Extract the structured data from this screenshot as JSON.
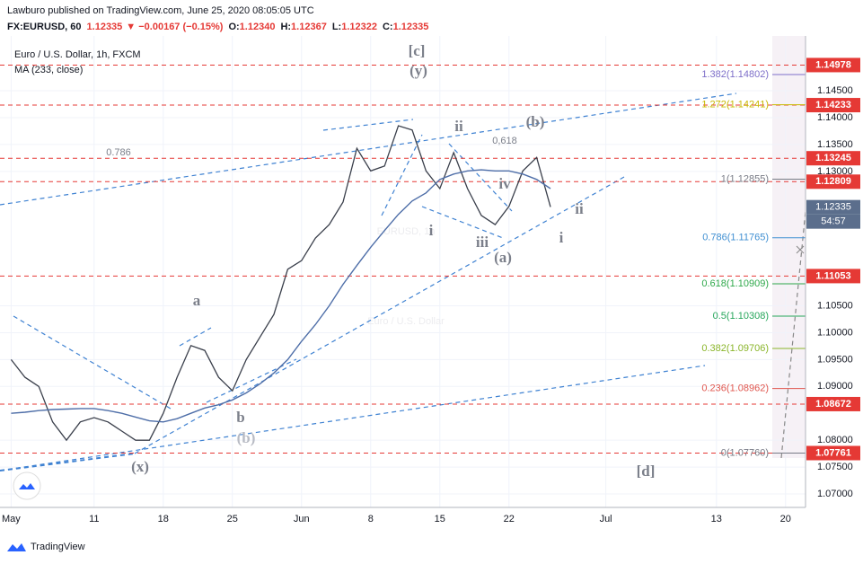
{
  "header": {
    "publisher": "Lawburo published on TradingView.com, June 25, 2020 08:05:05 UTC",
    "symbol": "FX:EURUSD, 60",
    "price": "1.12335",
    "change": "▼ −0.00167 (−0.15%)",
    "ohlc": [
      {
        "key": "O:",
        "value": "1.12340"
      },
      {
        "key": "H:",
        "value": "1.12367"
      },
      {
        "key": "L:",
        "value": "1.12322"
      },
      {
        "key": "C:",
        "value": "1.12335"
      }
    ],
    "footer": "TradingView"
  },
  "chart_data": {
    "type": "line",
    "title": "Euro / U.S. Dollar, 1h, FXCM",
    "indicator": "MA (233, close)",
    "watermark": "EURUSD, 1h",
    "watermark_subtitle": "Euro / U.S. Dollar",
    "x": [
      "2020-05-01",
      "2020-05-04",
      "2020-05-05",
      "2020-05-06",
      "2020-05-07",
      "2020-05-08",
      "2020-05-11",
      "2020-05-12",
      "2020-05-13",
      "2020-05-14",
      "2020-05-15",
      "2020-05-18",
      "2020-05-19",
      "2020-05-20",
      "2020-05-21",
      "2020-05-22",
      "2020-05-25",
      "2020-05-26",
      "2020-05-27",
      "2020-05-28",
      "2020-05-29",
      "2020-06-01",
      "2020-06-02",
      "2020-06-03",
      "2020-06-04",
      "2020-06-05",
      "2020-06-08",
      "2020-06-09",
      "2020-06-10",
      "2020-06-11",
      "2020-06-12",
      "2020-06-15",
      "2020-06-16",
      "2020-06-17",
      "2020-06-18",
      "2020-06-19",
      "2020-06-22",
      "2020-06-23",
      "2020-06-24",
      "2020-06-25"
    ],
    "series": [
      {
        "color": "#3a3f4b",
        "values": [
          1.095,
          1.0917,
          1.09,
          1.0834,
          1.08,
          1.0834,
          1.0842,
          1.0834,
          1.0817,
          1.08,
          1.08,
          1.085,
          1.0917,
          1.0976,
          1.0967,
          1.0917,
          1.0892,
          1.095,
          1.0992,
          1.1034,
          1.1118,
          1.1134,
          1.1176,
          1.1201,
          1.1243,
          1.1343,
          1.1301,
          1.131,
          1.1385,
          1.1377,
          1.1301,
          1.1268,
          1.1335,
          1.1268,
          1.1218,
          1.1201,
          1.1235,
          1.1301,
          1.1326,
          1.1234
        ]
      },
      {
        "color": "#4e6ea8",
        "values": [
          1.085,
          1.0852,
          1.0855,
          1.0857,
          1.0858,
          1.0859,
          1.0859,
          1.0855,
          1.085,
          1.0843,
          1.0836,
          1.0834,
          1.084,
          1.085,
          1.086,
          1.0866,
          1.0875,
          1.0888,
          1.0905,
          1.0925,
          1.095,
          1.0984,
          1.1015,
          1.105,
          1.109,
          1.1125,
          1.1159,
          1.119,
          1.122,
          1.1245,
          1.126,
          1.1285,
          1.1295,
          1.1301,
          1.1303,
          1.1301,
          1.1301,
          1.1295,
          1.1285,
          1.1268
        ]
      }
    ],
    "xlim": [
      "2020-04-30",
      "2020-07-22"
    ],
    "xticks": [
      {
        "value": "2020-05-01",
        "label": "May"
      },
      {
        "value": "2020-05-11",
        "label": "11"
      },
      {
        "value": "2020-05-18",
        "label": "18"
      },
      {
        "value": "2020-05-25",
        "label": "25"
      },
      {
        "value": "2020-06-01",
        "label": "Jun"
      },
      {
        "value": "2020-06-08",
        "label": "8"
      },
      {
        "value": "2020-06-15",
        "label": "15"
      },
      {
        "value": "2020-06-22",
        "label": "22"
      },
      {
        "value": "2020-07-01",
        "label": "Jul"
      },
      {
        "value": "2020-07-13",
        "label": "13"
      },
      {
        "value": "2020-07-20",
        "label": "20"
      }
    ],
    "ylim": [
      1.0675,
      1.1552
    ],
    "yticks": [
      {
        "value": 1.07,
        "label": "1.07000"
      },
      {
        "value": 1.075,
        "label": "1.07500"
      },
      {
        "value": 1.08,
        "label": "1.08000"
      },
      {
        "value": 1.09,
        "label": "1.09000"
      },
      {
        "value": 1.095,
        "label": "1.09500"
      },
      {
        "value": 1.1,
        "label": "1.10000"
      },
      {
        "value": 1.105,
        "label": "1.10500"
      },
      {
        "value": 1.13,
        "label": "1.13000"
      },
      {
        "value": 1.135,
        "label": "1.13500"
      },
      {
        "value": 1.14,
        "label": "1.14000"
      },
      {
        "value": 1.145,
        "label": "1.14500"
      }
    ],
    "grid": true,
    "hlines": [
      1.14978,
      1.14233,
      1.13245,
      1.12809,
      1.11053,
      1.08672,
      1.07761
    ],
    "hline_color": "#e53935",
    "last_price": 1.12335,
    "countdown": "54:57",
    "fib": [
      {
        "label": "1.382(1.14802)",
        "value": 1.14802,
        "color": "#7e6fc9"
      },
      {
        "label": "1.272(1.14241)",
        "value": 1.14241,
        "color": "#c8b800"
      },
      {
        "label": "1(1.12855)",
        "value": 1.12855,
        "color": "#787b86"
      },
      {
        "label": "0.786(1.11765)",
        "value": 1.11765,
        "color": "#3f8fd2"
      },
      {
        "label": "0.618(1.10909)",
        "value": 1.10909,
        "color": "#2ea84a"
      },
      {
        "label": "0.5(1.10308)",
        "value": 1.10308,
        "color": "#26a65b"
      },
      {
        "label": "0.382(1.09706)",
        "value": 1.09706,
        "color": "#8ab52a"
      },
      {
        "label": "0.236(1.08962)",
        "value": 1.08962,
        "color": "#e0574f"
      },
      {
        "label": "0(1.07760)",
        "value": 1.0776,
        "color": "#787b86"
      }
    ],
    "annotations": [
      "[c]",
      "(y)",
      "0.786",
      "ii",
      "(b)",
      "0,618",
      "iv",
      "i",
      "iii",
      "(a)",
      "ii",
      "i",
      "a",
      "b",
      "(b)",
      "(x)",
      "[d]"
    ]
  }
}
